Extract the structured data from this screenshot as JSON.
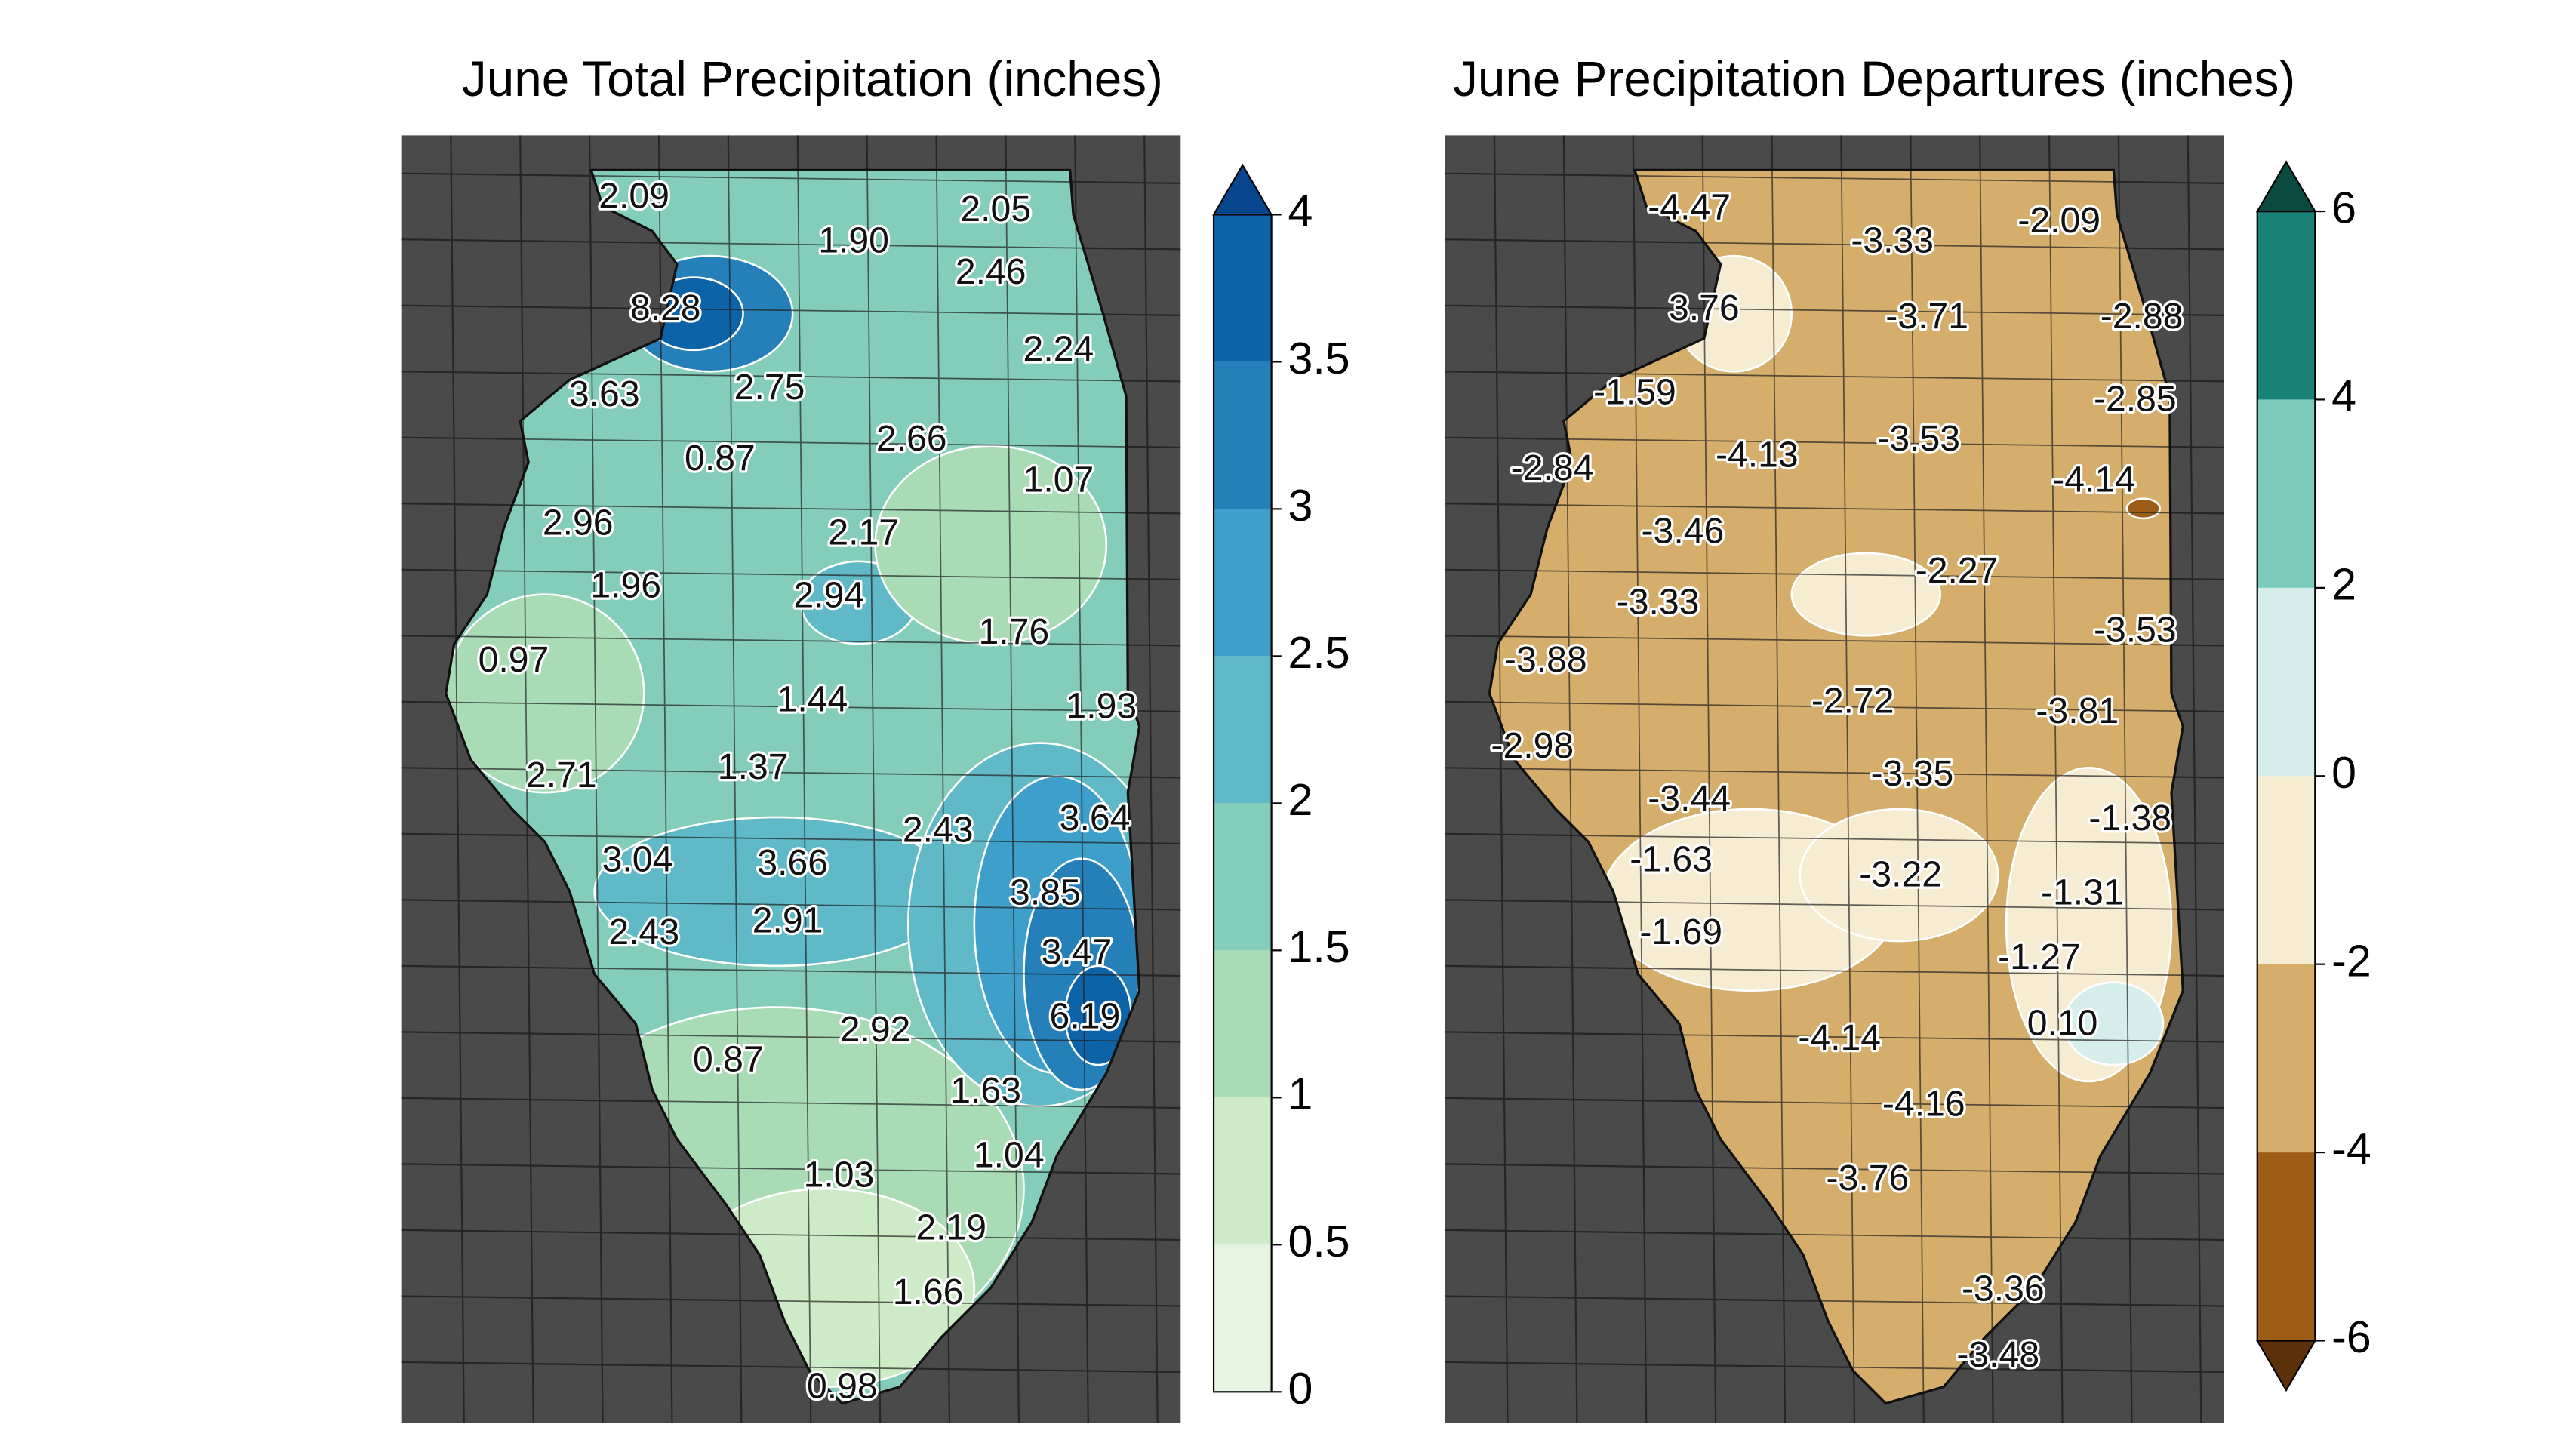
{
  "panels": [
    {
      "title": "June Total Precipitation (inches)",
      "stations": [
        "2.09",
        "1.90",
        "2.05",
        "2.46",
        "8.28",
        "2.24",
        "3.63",
        "2.75",
        "0.87",
        "2.66",
        "1.07",
        "2.96",
        "2.17",
        "1.96",
        "2.94",
        "1.76",
        "0.97",
        "1.44",
        "1.93",
        "2.71",
        "1.37",
        "2.43",
        "3.64",
        "3.04",
        "3.66",
        "3.85",
        "2.43",
        "2.91",
        "3.47",
        "6.19",
        "2.92",
        "0.87",
        "1.63",
        "1.04",
        "1.03",
        "2.19",
        "1.66",
        "0.98"
      ],
      "colorbar": {
        "ticks": [
          0,
          0.5,
          1,
          1.5,
          2,
          2.5,
          3,
          3.5,
          4
        ],
        "colors": [
          "#e6f5e1",
          "#cdebc6",
          "#a9dcb5",
          "#85cdbb",
          "#60b9c7",
          "#3e9fca",
          "#2580b9",
          "#0d63a8"
        ],
        "extend_max_color": "#08458f"
      }
    },
    {
      "title": "June Precipitation Departures (inches)",
      "stations": [
        "-4.47",
        "-3.33",
        "-2.09",
        "3.76",
        "-3.71",
        "-2.88",
        "-1.59",
        "-2.85",
        "-2.84",
        "-4.13",
        "-3.53",
        "-4.14",
        "-3.46",
        "-2.27",
        "-3.33",
        "-3.53",
        "-3.88",
        "-2.72",
        "-3.81",
        "-2.98",
        "-3.44",
        "-3.35",
        "-1.38",
        "-1.63",
        "-3.22",
        "-1.31",
        "-1.69",
        "-1.27",
        "0.10",
        "-4.14",
        "-4.16",
        "-3.76",
        "-3.36",
        "-3.48"
      ],
      "colorbar": {
        "ticks": [
          -6,
          -4,
          -2,
          0,
          2,
          4,
          6
        ],
        "colors": [
          "#9c5c16",
          "#d5ae6b",
          "#f6ecd2",
          "#d5eeeb",
          "#7ccbbd",
          "#1a8178"
        ],
        "extend_min_color": "#5a3108",
        "extend_max_color": "#0b4a41"
      }
    }
  ]
}
